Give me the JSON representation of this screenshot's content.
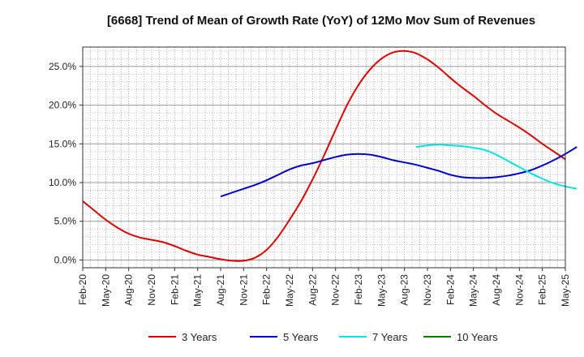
{
  "chart_data": {
    "type": "line",
    "title": "[6668]  Trend of Mean of Growth Rate (YoY) of 12Mo Mov Sum of Revenues",
    "xlabel": "",
    "ylabel": "",
    "ylim": [
      -1.0,
      27.5
    ],
    "yticks": [
      0,
      5,
      10,
      15,
      20,
      25
    ],
    "ytick_labels": [
      "0.0%",
      "5.0%",
      "10.0%",
      "15.0%",
      "20.0%",
      "25.0%"
    ],
    "x_tick_labels": [
      "Feb-20",
      "May-20",
      "Aug-20",
      "Nov-20",
      "Feb-21",
      "May-21",
      "Aug-21",
      "Nov-21",
      "Feb-22",
      "May-22",
      "Aug-22",
      "Nov-22",
      "Feb-23",
      "May-23",
      "Aug-23",
      "Nov-23",
      "Feb-24",
      "May-24",
      "Aug-24",
      "Nov-24",
      "Feb-25",
      "May-25"
    ],
    "grid": true,
    "legend_position": "bottom",
    "series": [
      {
        "name": "3 Years",
        "color": "#dd0000",
        "points": [
          [
            0,
            7.6
          ],
          [
            1,
            6.4
          ],
          [
            2,
            5.2
          ],
          [
            3,
            4.2
          ],
          [
            4,
            3.4
          ],
          [
            5,
            2.9
          ],
          [
            6,
            2.6
          ],
          [
            7,
            2.3
          ],
          [
            8,
            1.8
          ],
          [
            9,
            1.2
          ],
          [
            10,
            0.7
          ],
          [
            11,
            0.4
          ],
          [
            12,
            0.1
          ],
          [
            13,
            -0.1
          ],
          [
            14,
            -0.1
          ],
          [
            15,
            0.3
          ],
          [
            16,
            1.3
          ],
          [
            17,
            3.0
          ],
          [
            18,
            5.2
          ],
          [
            19,
            7.6
          ],
          [
            20,
            10.4
          ],
          [
            21,
            13.5
          ],
          [
            22,
            16.8
          ],
          [
            23,
            20.0
          ],
          [
            24,
            22.6
          ],
          [
            25,
            24.6
          ],
          [
            26,
            26.0
          ],
          [
            27,
            26.8
          ],
          [
            28,
            27.0
          ],
          [
            29,
            26.7
          ],
          [
            30,
            25.9
          ],
          [
            31,
            24.8
          ],
          [
            32,
            23.5
          ],
          [
            33,
            22.3
          ],
          [
            34,
            21.2
          ],
          [
            35,
            20.0
          ],
          [
            36,
            18.9
          ],
          [
            37,
            18.0
          ],
          [
            38,
            17.1
          ],
          [
            39,
            16.1
          ],
          [
            40,
            15.0
          ],
          [
            41,
            14.0
          ],
          [
            42,
            13.0
          ]
        ]
      },
      {
        "name": "5 Years",
        "color": "#0000cc",
        "points": [
          [
            12,
            8.2
          ],
          [
            13,
            8.7
          ],
          [
            14,
            9.2
          ],
          [
            15,
            9.7
          ],
          [
            16,
            10.3
          ],
          [
            17,
            11.0
          ],
          [
            18,
            11.7
          ],
          [
            19,
            12.2
          ],
          [
            20,
            12.5
          ],
          [
            21,
            12.9
          ],
          [
            22,
            13.3
          ],
          [
            23,
            13.6
          ],
          [
            24,
            13.7
          ],
          [
            25,
            13.6
          ],
          [
            26,
            13.3
          ],
          [
            27,
            12.9
          ],
          [
            28,
            12.6
          ],
          [
            29,
            12.3
          ],
          [
            30,
            11.9
          ],
          [
            31,
            11.5
          ],
          [
            32,
            11.0
          ],
          [
            33,
            10.7
          ],
          [
            34,
            10.6
          ],
          [
            35,
            10.6
          ],
          [
            36,
            10.7
          ],
          [
            37,
            10.9
          ],
          [
            38,
            11.2
          ],
          [
            39,
            11.6
          ],
          [
            40,
            12.2
          ],
          [
            41,
            12.9
          ],
          [
            42,
            13.7
          ],
          [
            43,
            14.6
          ]
        ]
      },
      {
        "name": "7 Years",
        "color": "#00e5e5",
        "points": [
          [
            29,
            14.6
          ],
          [
            30,
            14.8
          ],
          [
            31,
            14.9
          ],
          [
            32,
            14.8
          ],
          [
            33,
            14.7
          ],
          [
            34,
            14.5
          ],
          [
            35,
            14.2
          ],
          [
            36,
            13.6
          ],
          [
            37,
            12.8
          ],
          [
            38,
            12.0
          ],
          [
            39,
            11.2
          ],
          [
            40,
            10.5
          ],
          [
            41,
            9.9
          ],
          [
            42,
            9.5
          ],
          [
            43,
            9.2
          ]
        ]
      },
      {
        "name": "10 Years",
        "color": "#008000",
        "points": []
      }
    ]
  }
}
